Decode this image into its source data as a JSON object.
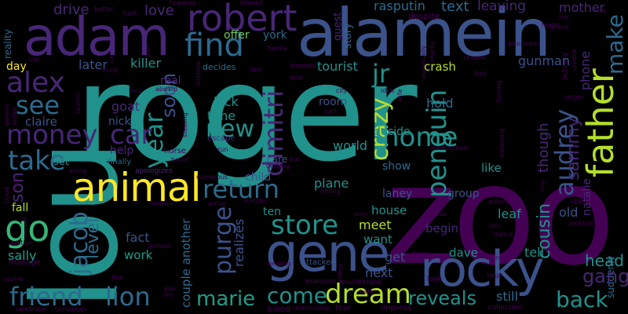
{
  "words": {
    "roger": "roger",
    "zoo": "zoo",
    "lou": "lou",
    "alamein": "alamein",
    "adam": "adam",
    "gene": "gene",
    "rocky": "rocky",
    "robert": "robert",
    "animal": "animal",
    "find": "find",
    "father": "father",
    "alex": "alex",
    "money": "money",
    "dimitri": "dimitri",
    "penguin": "penguin",
    "friend": "friend",
    "lion": "lion",
    "dream": "dream",
    "store": "store",
    "go": "go",
    "home": "home",
    "back": "back",
    "marie": "marie",
    "reveals": "reveals",
    "return": "return",
    "audrey": "audrey",
    "crazy": "crazy",
    "jacob": "jacob",
    "come": "come",
    "take": "take",
    "car": "car",
    "new": "new",
    "year": "year",
    "see": "see",
    "gang": "gang",
    "make": "make",
    "son": "son",
    "purge": "purge",
    "jr": "jr",
    "level": "level",
    "head": "head",
    "cousin": "cousin",
    "sammy": "sammy",
    "drive": "drive",
    "love": "love",
    "text": "text",
    "leaving": "leaving",
    "mother": "mother",
    "rasputin": "rasputin",
    "killer": "killer",
    "later": "later",
    "tourist": "tourist",
    "crash": "crash",
    "gunman": "gunman",
    "kick": "kick",
    "time": "time",
    "soon": "soon",
    "plane": "plane",
    "world": "world",
    "room": "room",
    "hold": "hold",
    "show": "show",
    "house": "house",
    "laney": "laney",
    "meet": "meet",
    "want": "want",
    "fact": "fact",
    "work": "work",
    "sally": "sally",
    "fall": "fall",
    "ten": "ten",
    "get": "get",
    "next": "next",
    "dave": "dave",
    "tell": "tell",
    "still": "still",
    "old": "old",
    "leaf": "leaf",
    "begin": "begin",
    "group": "group",
    "like": "like",
    "though": "though",
    "natalie": "natalie",
    "phone": "phone",
    "offer": "offer",
    "york": "york",
    "guest": "guest",
    "story": "story",
    "goat": "goat",
    "nick": "nick",
    "claire": "claire",
    "help": "help",
    "real": "real",
    "set": "set",
    "child": "child",
    "day": "day",
    "reality": "reality",
    "decides": "decides",
    "escape": "escape",
    "care": "care",
    "realizes": "realizes",
    "couple_another": "couple another",
    "decide": "decide",
    "finally": "finally",
    "apologizes": "apologizes",
    "horse": "horse",
    "manage": "manage",
    "attacked": "attacked",
    "mansion": "mansion",
    "killed": "killed",
    "relationship": "relationship",
    "tour": "tour",
    "impress": "impress",
    "wouldrefuse": "wouldrefuse",
    "look": "look",
    "dying": "dying",
    "large": "large",
    "suddenly": "suddenly",
    "collection": "collection",
    "end": "end",
    "dance": "dance",
    "join": "join",
    "around": "around",
    "sitting": "sitting",
    "jackson": "jackson",
    "murderer": "murderer",
    "news": "news",
    "grace": "grace",
    "seen": "seen",
    "hitting": "hitting",
    "digging": "digging",
    "bus": "bus",
    "suicide": "suicide",
    "arrive": "arrive",
    "million": "million",
    "numerous": "numerous",
    "instead": "instead",
    "wedding": "wedding",
    "sophie": "sophie",
    "auction": "auction",
    "colonel": "colonel",
    "cloud": "cloud",
    "train": "train",
    "along": "along",
    "belief": "belief",
    "run": "run",
    "stealing": "stealing",
    "part": "part",
    "city": "city",
    "idea": "idea",
    "wife": "wife",
    "mile": "mile",
    "memory": "memory",
    "lied": "lied",
    "family": "family",
    "interest": "interest",
    "however": "however",
    "better": "better",
    "trust": "trust",
    "despite": "despite",
    "eventually": "eventually",
    "angrily": "angrily",
    "also_team": "also team",
    "many": "many",
    "grand": "grand",
    "joe": "joe",
    "ice": "ice",
    "actually": "actually",
    "unable": "unable",
    "several": "several",
    "bay": "bay",
    "forcing": "forcing",
    "believing": "believing",
    "malfunction": "malfunction",
    "sergei": "sergei",
    "crop": "crop",
    "boy": "boy",
    "aboard": "aboard",
    "airplane": "airplane",
    "must": "must",
    "aid": "aid",
    "use": "use",
    "search": "search",
    "entire": "entire",
    "person": "person",
    "one": "one",
    "app": "app",
    "jim": "jim",
    "due": "due",
    "celebrate": "celebrate",
    "convinces": "convinces",
    "harm": "harm",
    "arthur": "arthur"
  }
}
